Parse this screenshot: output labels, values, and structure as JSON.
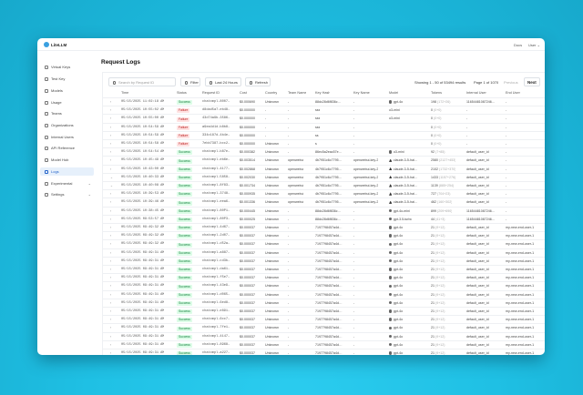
{
  "app": {
    "name": "LiteLLM",
    "nav": [
      "Docs",
      "User"
    ]
  },
  "sidebar": {
    "items": [
      {
        "label": "Virtual Keys",
        "icon": "key-icon"
      },
      {
        "label": "Test Key",
        "icon": "play-icon"
      },
      {
        "label": "Models",
        "icon": "block-icon"
      },
      {
        "label": "Usage",
        "icon": "bar-chart-icon"
      },
      {
        "label": "Teams",
        "icon": "team-icon"
      },
      {
        "label": "Organizations",
        "icon": "bank-icon"
      },
      {
        "label": "Internal Users",
        "icon": "user-icon"
      },
      {
        "label": "API Reference",
        "icon": "api-icon"
      },
      {
        "label": "Model Hub",
        "icon": "app-store-icon"
      },
      {
        "label": "Logs",
        "icon": "line-chart-icon",
        "active": true
      },
      {
        "label": "Experimental",
        "icon": "experiment-icon",
        "expandable": true
      },
      {
        "label": "Settings",
        "icon": "gear-icon",
        "expandable": true
      }
    ]
  },
  "page": {
    "title": "Request Logs"
  },
  "toolbar": {
    "search_placeholder": "Search by Request ID",
    "filter": "Filter",
    "range": "Last 24 Hours",
    "refresh": "Refresh",
    "showing": "Showing 1 - 50 of 53494 results",
    "page": "Page 1 of 1070",
    "previous": "Previous",
    "next": "Next"
  },
  "colors": {
    "accent": "#2563c9",
    "success_bg": "#dcfce7",
    "failure_bg": "#fee2e2"
  },
  "table": {
    "columns": [
      "Time",
      "Status",
      "Request ID",
      "Cost",
      "Country",
      "Team Name",
      "Key Hash",
      "Key Name",
      "Model",
      "Tokens",
      "Internal User",
      "End User"
    ],
    "rows": [
      [
        "05/15/2025 11:02:18 AM",
        "Success",
        "chatcmpl-8007…",
        "$0.000690",
        "Unknown",
        "-",
        "88dc28d6f836c…",
        "-",
        "gpt-4o",
        "198",
        "(172+26)",
        "11654481087246…",
        "-"
      ],
      [
        "05/15/2025 10:55:02 AM",
        "Failure",
        "d8dad5a7-eb48…",
        "$0.000000",
        "-",
        "-",
        "sss",
        "-",
        "o3-mini",
        "0",
        "(0+0)",
        "-",
        "-"
      ],
      [
        "05/15/2025 10:55:00 AM",
        "Failure",
        "43d74a9b-3586…",
        "$0.000000",
        "-",
        "-",
        "sss",
        "-",
        "o3-mini",
        "0",
        "(0+0)",
        "-",
        "-"
      ],
      [
        "05/15/2025 10:54:59 AM",
        "Failure",
        "a9ea4d1d-b8b8…",
        "$0.000000",
        "-",
        "-",
        "sss",
        "-",
        "",
        "0",
        "(0+0)",
        "-",
        "-"
      ],
      [
        "05/15/2025 10:54:59 AM",
        "Failure",
        "334c187d-4b4e…",
        "$0.000000",
        "-",
        "-",
        "ss",
        "-",
        "",
        "0",
        "(0+0)",
        "-",
        "-"
      ],
      [
        "05/15/2025 10:54:58 AM",
        "Failure",
        "7ebb7387-bcc2…",
        "$0.000000",
        "Unknown",
        "-",
        "s",
        "-",
        "",
        "0",
        "(0+0)",
        "-",
        "-"
      ],
      [
        "05/15/2025 10:54:54 AM",
        "Success",
        "chatcmpl-b87e…",
        "$0.000382",
        "Unknown",
        "-",
        "86ec5a2eac57e…",
        "-",
        "o3-mini",
        "92",
        "(7+85)",
        "default_user_id",
        "-"
      ],
      [
        "05/15/2025 10:45:49 AM",
        "Success",
        "chatcmpl-eb6e…",
        "$0.003514",
        "Unknown",
        "openwebui",
        "4b7951c6c7795…",
        "openwebui-key-2",
        "claude-3-5-hai…",
        "2580",
        "(2127+453)",
        "default_user_id",
        "-"
      ],
      [
        "05/15/2025 10:43:00 AM",
        "Success",
        "chatcmpl-4177…",
        "$0.002868",
        "Unknown",
        "openwebui",
        "4b7951c6c7795…",
        "openwebui-key-2",
        "claude-3-5-hai…",
        "2102",
        "(1732+370)",
        "default_user_id",
        "-"
      ],
      [
        "05/15/2025 10:40:33 AM",
        "Success",
        "chatcmpl-5858…",
        "$0.002030",
        "Unknown",
        "openwebui",
        "4b7951c6c7795…",
        "openwebui-key-2",
        "claude-3-5-hai…",
        "1433",
        "(1157+276)",
        "default_user_id",
        "-"
      ],
      [
        "05/15/2025 10:40:08 AM",
        "Success",
        "chatcmpl-8f83…",
        "$0.001734",
        "Unknown",
        "openwebui",
        "4b7951c6c7795…",
        "openwebui-key-2",
        "claude-3-5-hai…",
        "1139",
        "(885+254)",
        "default_user_id",
        "-"
      ],
      [
        "05/15/2025 10:39:53 AM",
        "Success",
        "chatcmpl-3748…",
        "$0.000935",
        "Unknown",
        "openwebui",
        "4b7951c6c7795…",
        "openwebui-key-2",
        "claude-3-5-hai…",
        "727",
        "(704+23)",
        "default_user_id",
        "-"
      ],
      [
        "05/15/2025 10:39:46 AM",
        "Success",
        "chatcmpl-eea6…",
        "$0.001336",
        "Unknown",
        "openwebui",
        "4b7951c6c7795…",
        "openwebui-key-2",
        "claude-3-5-hai…",
        "462",
        "(160+302)",
        "default_user_id",
        "-"
      ],
      [
        "05/15/2025 10:38:45 AM",
        "Success",
        "chatcmpl-80P1…",
        "$0.000445",
        "Unknown",
        "-",
        "88dc28d6f836c…",
        "-",
        "gpt-4o-mini",
        "899",
        "(209+690)",
        "11654481087246…",
        "-"
      ],
      [
        "05/15/2025 09:53:57 AM",
        "Success",
        "chatcmpl-80P3…",
        "$0.000025",
        "Unknown",
        "-",
        "88dc28d6f836c…",
        "-",
        "gpt-3.5-turbo",
        "44",
        "(41+3)",
        "11654481087246…",
        "-"
      ],
      [
        "05/15/2025 09:49:32 AM",
        "Success",
        "chatcmpl-4d67…",
        "$0.000037",
        "Unknown",
        "-",
        "7197798457a4d…",
        "-",
        "gpt-4o",
        "21",
        "(9+12)",
        "default_user_id",
        "my-new-end-user-1"
      ],
      [
        "05/15/2025 09:49:32 AM",
        "Success",
        "chatcmpl-2d07…",
        "$0.000037",
        "Unknown",
        "-",
        "7197798457a4d…",
        "-",
        "gpt-4o",
        "21",
        "(9+12)",
        "default_user_id",
        "my-new-end-user-1"
      ],
      [
        "05/15/2025 09:49:32 AM",
        "Success",
        "chatcmpl-d52a…",
        "$0.000037",
        "Unknown",
        "-",
        "7197798457a4d…",
        "-",
        "gpt-4o",
        "21",
        "(9+12)",
        "default_user_id",
        "my-new-end-user-1"
      ],
      [
        "05/15/2025 09:49:31 AM",
        "Success",
        "chatcmpl-a887…",
        "$0.000037",
        "Unknown",
        "-",
        "7197798457a4d…",
        "-",
        "gpt-4o",
        "21",
        "(9+12)",
        "default_user_id",
        "my-new-end-user-1"
      ],
      [
        "05/15/2025 09:49:31 AM",
        "Success",
        "chatcmpl-cd3b…",
        "$0.000037",
        "Unknown",
        "-",
        "7197798457a4d…",
        "-",
        "gpt-4o",
        "21",
        "(9+12)",
        "default_user_id",
        "my-new-end-user-1"
      ],
      [
        "05/15/2025 09:49:31 AM",
        "Success",
        "chatcmpl-da61…",
        "$0.000037",
        "Unknown",
        "-",
        "7197798457a4d…",
        "-",
        "gpt-4o",
        "21",
        "(9+12)",
        "default_user_id",
        "my-new-end-user-1"
      ],
      [
        "05/15/2025 09:49:31 AM",
        "Success",
        "chatcmpl-f5e7…",
        "$0.000037",
        "Unknown",
        "-",
        "7197798457a4d…",
        "-",
        "gpt-4o",
        "21",
        "(9+12)",
        "default_user_id",
        "my-new-end-user-1"
      ],
      [
        "05/15/2025 09:49:31 AM",
        "Success",
        "chatcmpl-43e9…",
        "$0.000037",
        "Unknown",
        "-",
        "7197798457a4d…",
        "-",
        "gpt-4o",
        "21",
        "(9+12)",
        "default_user_id",
        "my-new-end-user-1"
      ],
      [
        "05/15/2025 09:49:31 AM",
        "Success",
        "chatcmpl-d065…",
        "$0.000037",
        "Unknown",
        "-",
        "7197798457a4d…",
        "-",
        "gpt-4o",
        "21",
        "(9+12)",
        "default_user_id",
        "my-new-end-user-1"
      ],
      [
        "05/15/2025 09:49:31 AM",
        "Success",
        "chatcmpl-6ed8…",
        "$0.000037",
        "Unknown",
        "-",
        "7197798457a4d…",
        "-",
        "gpt-4o",
        "21",
        "(9+12)",
        "default_user_id",
        "my-new-end-user-1"
      ],
      [
        "05/15/2025 09:49:31 AM",
        "Success",
        "chatcmpl-e891…",
        "$0.000037",
        "Unknown",
        "-",
        "7197798457a4d…",
        "-",
        "gpt-4o",
        "21",
        "(9+12)",
        "default_user_id",
        "my-new-end-user-1"
      ],
      [
        "05/15/2025 09:49:31 AM",
        "Success",
        "chatcmpl-6cc7…",
        "$0.000037",
        "Unknown",
        "-",
        "7197798457a4d…",
        "-",
        "gpt-4o",
        "21",
        "(9+12)",
        "default_user_id",
        "my-new-end-user-1"
      ],
      [
        "05/15/2025 09:49:31 AM",
        "Success",
        "chatcmpl-7fe1…",
        "$0.000037",
        "Unknown",
        "-",
        "7197798457a4d…",
        "-",
        "gpt-4o",
        "21",
        "(9+12)",
        "default_user_id",
        "my-new-end-user-1"
      ],
      [
        "05/15/2025 09:49:31 AM",
        "Success",
        "chatcmpl-4147…",
        "$0.000037",
        "Unknown",
        "-",
        "7197798457a4d…",
        "-",
        "gpt-4o",
        "21",
        "(9+12)",
        "default_user_id",
        "my-new-end-user-1"
      ],
      [
        "05/15/2025 09:49:31 AM",
        "Success",
        "chatcmpl-8968…",
        "$0.000037",
        "Unknown",
        "-",
        "7197798457a4d…",
        "-",
        "gpt-4o",
        "21",
        "(9+12)",
        "default_user_id",
        "my-new-end-user-1"
      ],
      [
        "05/15/2025 09:49:31 AM",
        "Success",
        "chatcmpl-a227…",
        "$0.000037",
        "Unknown",
        "-",
        "7197798457a4d…",
        "-",
        "gpt-4o",
        "21",
        "(9+12)",
        "default_user_id",
        "my-new-end-user-1"
      ]
    ],
    "expanded_rows": [
      9,
      10
    ]
  }
}
